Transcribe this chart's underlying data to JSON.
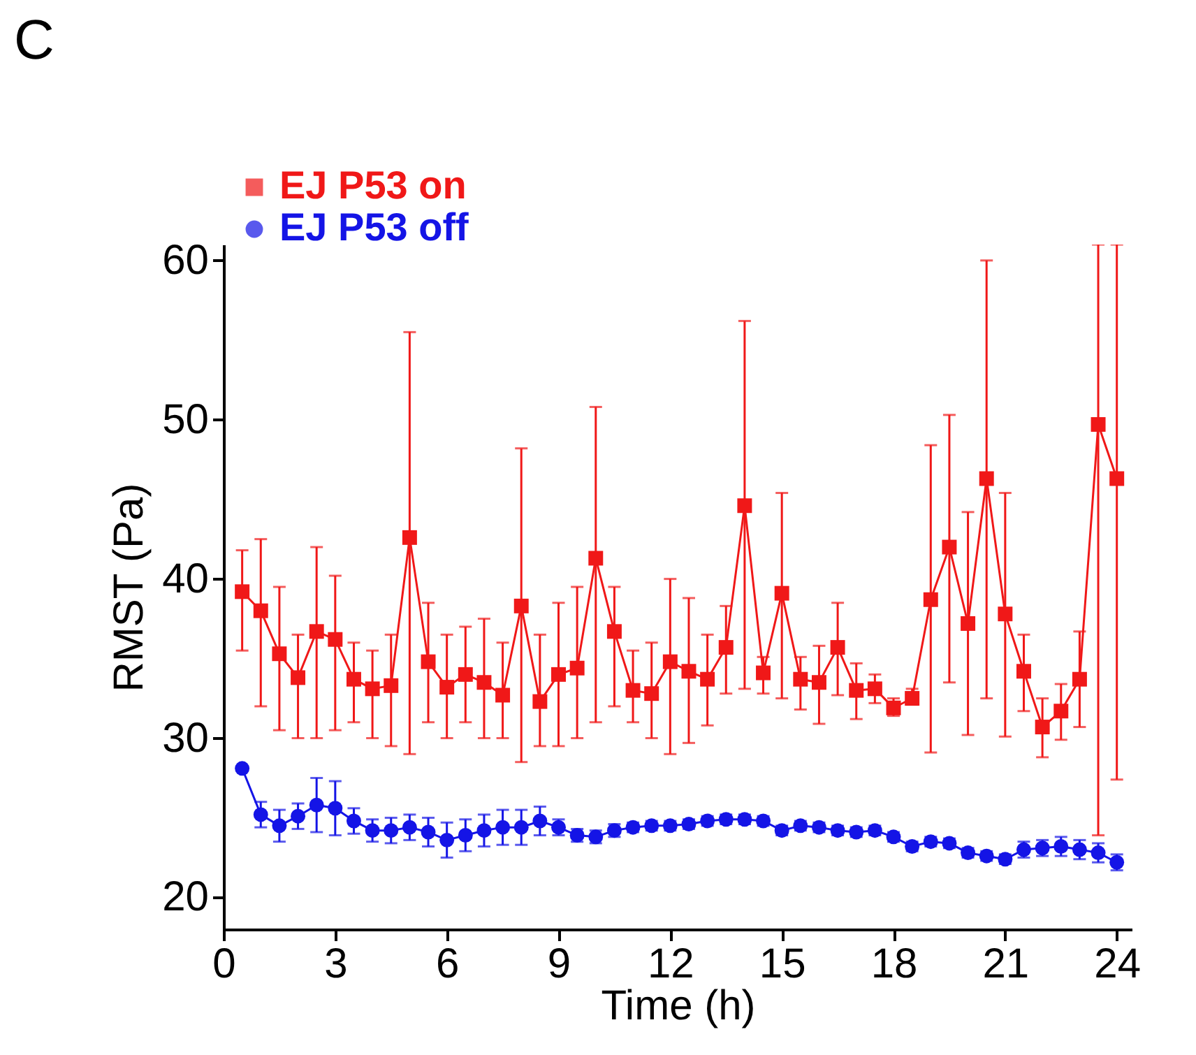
{
  "chart_data": {
    "type": "line",
    "title": "C",
    "xlabel": "Time (h)",
    "ylabel": "RMST (Pa)",
    "x": [
      0.5,
      1,
      1.5,
      2,
      2.5,
      3,
      3.5,
      4,
      4.5,
      5,
      5.5,
      6,
      6.5,
      7,
      7.5,
      8,
      8.5,
      9,
      9.5,
      10,
      10.5,
      11,
      11.5,
      12,
      12.5,
      13,
      13.5,
      14,
      14.5,
      15,
      15.5,
      16,
      16.5,
      17,
      17.5,
      18,
      18.5,
      19,
      19.5,
      20,
      20.5,
      21,
      21.5,
      22,
      22.5,
      23,
      23.5,
      24
    ],
    "series": [
      {
        "name": "EJ P53 on",
        "color": "#f01818",
        "marker": "square",
        "values": [
          39.2,
          38,
          35.3,
          33.8,
          36.7,
          36.2,
          33.7,
          33.1,
          33.3,
          42.6,
          34.8,
          33.2,
          34,
          33.5,
          32.7,
          38.3,
          32.3,
          34,
          34.4,
          41.3,
          36.7,
          33,
          32.8,
          34.8,
          34.2,
          33.7,
          35.7,
          44.6,
          34.1,
          39.1,
          33.7,
          33.5,
          35.7,
          33,
          33.1,
          31.9,
          32.5,
          38.7,
          42,
          37.2,
          46.3,
          37.8,
          34.2,
          30.7,
          31.7,
          33.7,
          49.7,
          46.3
        ],
        "errors": [
          [
            35.5,
            41.8
          ],
          [
            32,
            42.5
          ],
          [
            30.5,
            39.5
          ],
          [
            30,
            36.5
          ],
          [
            30,
            42
          ],
          [
            30.5,
            40.2
          ],
          [
            31,
            36
          ],
          [
            30,
            35.5
          ],
          [
            29.5,
            36.5
          ],
          [
            29,
            55.5
          ],
          [
            31,
            38.5
          ],
          [
            30,
            36.5
          ],
          [
            31,
            37
          ],
          [
            30,
            37.5
          ],
          [
            30,
            36
          ],
          [
            28.5,
            48.2
          ],
          [
            29.5,
            36.5
          ],
          [
            29.5,
            38.5
          ],
          [
            30,
            39.5
          ],
          [
            31,
            50.8
          ],
          [
            32,
            39.5
          ],
          [
            31,
            35.5
          ],
          [
            30,
            36
          ],
          [
            29,
            40
          ],
          [
            29.7,
            38.8
          ],
          [
            30.8,
            36.5
          ],
          [
            32.8,
            38.3
          ],
          [
            33.1,
            56.2
          ],
          [
            32.8,
            35.1
          ],
          [
            32.5,
            45.4
          ],
          [
            31.8,
            35.1
          ],
          [
            30.9,
            35.8
          ],
          [
            32.7,
            38.5
          ],
          [
            31.2,
            34.7
          ],
          [
            32.2,
            34
          ],
          [
            31.4,
            32.5
          ],
          [
            32.1,
            33.1
          ],
          [
            29.1,
            48.4
          ],
          [
            33.5,
            50.3
          ],
          [
            30.2,
            44.2
          ],
          [
            32.5,
            60
          ],
          [
            30.1,
            45.4
          ],
          [
            31.7,
            36.5
          ],
          [
            28.8,
            32.5
          ],
          [
            29.9,
            33.4
          ],
          [
            30.7,
            36.7
          ],
          [
            23.9,
            61
          ],
          [
            27.4,
            61
          ]
        ]
      },
      {
        "name": "EJ P53 off",
        "color": "#1414e6",
        "marker": "circle",
        "values": [
          28.1,
          25.2,
          24.5,
          25.1,
          25.8,
          25.6,
          24.8,
          24.2,
          24.2,
          24.4,
          24.1,
          23.6,
          23.9,
          24.2,
          24.4,
          24.4,
          24.8,
          24.4,
          23.9,
          23.8,
          24.2,
          24.4,
          24.5,
          24.5,
          24.6,
          24.8,
          24.9,
          24.9,
          24.8,
          24.2,
          24.5,
          24.4,
          24.2,
          24.1,
          24.2,
          23.8,
          23.2,
          23.5,
          23.4,
          22.8,
          22.6,
          22.4,
          23,
          23.1,
          23.2,
          23,
          22.8,
          22.2
        ],
        "errors": [
          null,
          0.8,
          1,
          0.8,
          1.7,
          1.7,
          0.8,
          0.7,
          0.8,
          0.8,
          0.9,
          1.1,
          1,
          1,
          1.1,
          1.1,
          0.9,
          0.5,
          0.4,
          0.4,
          0.4,
          0.3,
          0.3,
          0.3,
          0.3,
          0.3,
          0.3,
          0.3,
          0.3,
          0.3,
          0.3,
          0.3,
          0.3,
          0.3,
          0.3,
          0.3,
          0.3,
          0.3,
          0.3,
          0.3,
          0.3,
          0.3,
          0.5,
          0.5,
          0.6,
          0.6,
          0.6,
          0.5
        ]
      }
    ],
    "xlim": [
      0,
      24.4
    ],
    "xticks": [
      0,
      3,
      6,
      9,
      12,
      15,
      18,
      21,
      24
    ],
    "ylim": [
      18,
      61
    ],
    "yticks": [
      20,
      30,
      40,
      50,
      60
    ],
    "grid": false,
    "legend": "top left",
    "line_style": "solid"
  }
}
